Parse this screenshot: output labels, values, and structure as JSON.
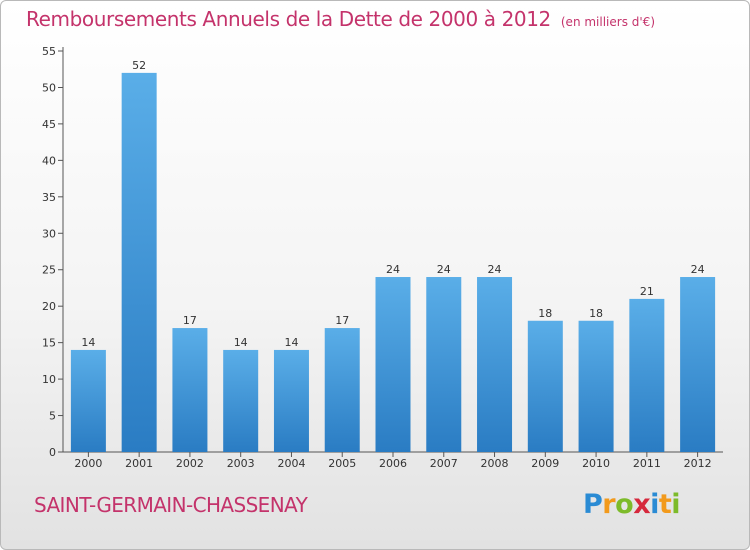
{
  "header": {
    "title": "Remboursements Annuels de la Dette de 2000 à 2012",
    "unit": "(en milliers d'€)"
  },
  "footer": {
    "commune": "SAINT-GERMAIN-CHASSENAY",
    "logo_text": "Proxiti"
  },
  "colors": {
    "title": "#c4336b",
    "bar_top": "#5aaee8",
    "bar_bottom": "#2a7cc3",
    "axis": "#555555"
  },
  "chart_data": {
    "type": "bar",
    "title": "Remboursements Annuels de la Dette de 2000 à 2012",
    "subtitle": "(en milliers d'€)",
    "xlabel": "",
    "ylabel": "",
    "ylim": [
      0,
      55
    ],
    "yticks": [
      0,
      5,
      10,
      15,
      20,
      25,
      30,
      35,
      40,
      45,
      50,
      55
    ],
    "grid": false,
    "categories": [
      "2000",
      "2001",
      "2002",
      "2003",
      "2004",
      "2005",
      "2006",
      "2007",
      "2008",
      "2009",
      "2010",
      "2011",
      "2012"
    ],
    "values": [
      14,
      52,
      17,
      14,
      14,
      17,
      24,
      24,
      24,
      18,
      18,
      21,
      24
    ]
  }
}
